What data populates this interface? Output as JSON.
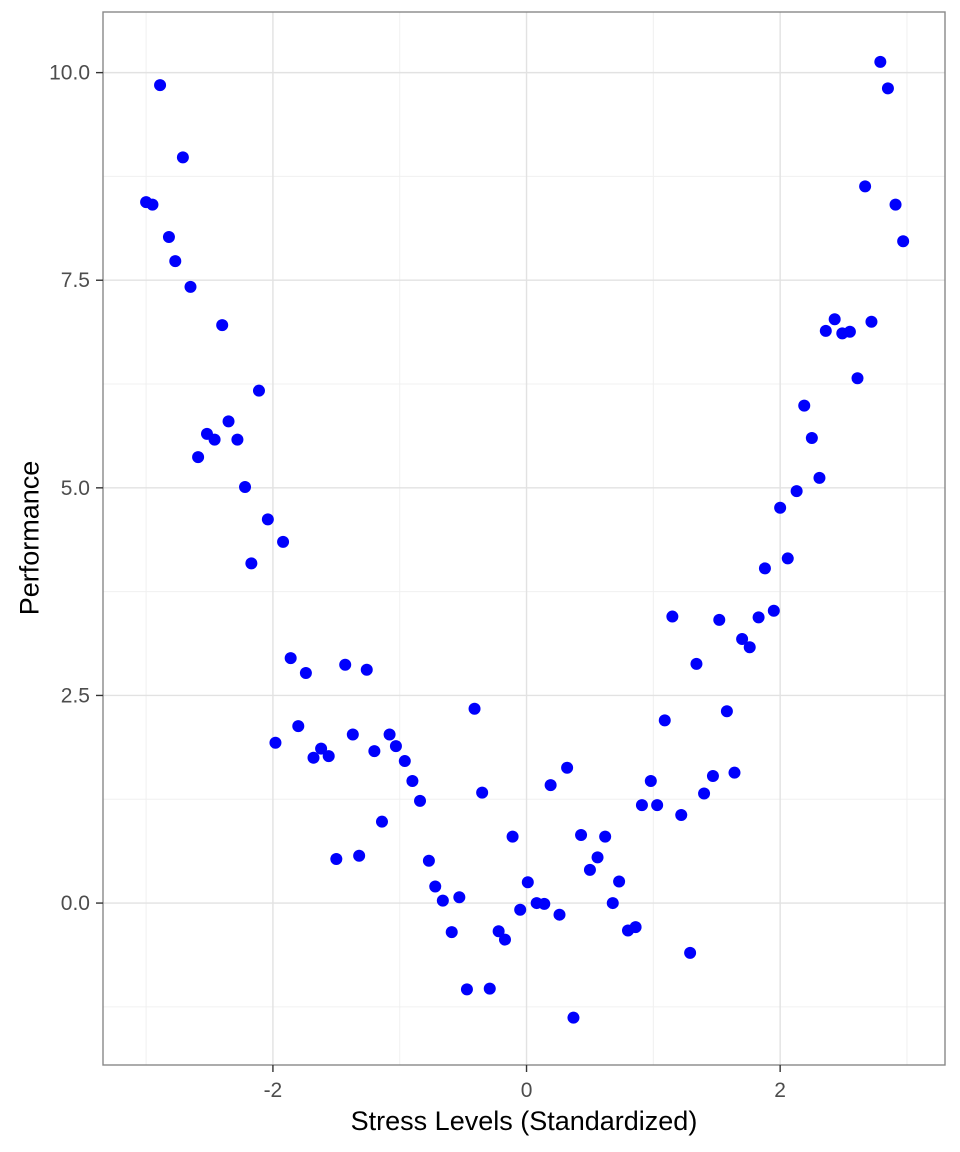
{
  "chart_data": {
    "type": "scatter",
    "title": "",
    "xlabel": "Stress Levels (Standardized)",
    "ylabel": "Performance",
    "x_tick_labels": [
      "-2",
      "0",
      "2"
    ],
    "x_tick_values": [
      -2,
      0,
      2
    ],
    "y_tick_labels": [
      "0.0",
      "2.5",
      "5.0",
      "7.5",
      "10.0"
    ],
    "y_tick_values": [
      0,
      2.5,
      5,
      7.5,
      10
    ],
    "x_minor_values": [
      -3,
      -1,
      1,
      3
    ],
    "y_minor_values": [
      -1.25,
      1.25,
      3.75,
      6.25,
      8.75
    ],
    "xlim": [
      -3.34,
      3.3
    ],
    "ylim": [
      -1.95,
      10.73
    ],
    "grid": true,
    "legend_position": "none",
    "colors": {
      "point": "#0000FC",
      "grid_major": "#E2E2E2",
      "grid_minor": "#F0F0F0",
      "panel_border": "#888888",
      "tick_mark": "#333333",
      "tick_label": "#4d4d4d",
      "axis_title": "#000000",
      "background": "#FFFFFF"
    },
    "points": [
      [
        -2.89,
        9.85
      ],
      [
        -2.71,
        8.98
      ],
      [
        -3.0,
        8.44
      ],
      [
        -2.95,
        8.41
      ],
      [
        -2.82,
        8.02
      ],
      [
        -2.77,
        7.73
      ],
      [
        -2.65,
        7.42
      ],
      [
        -2.4,
        6.96
      ],
      [
        2.79,
        10.13
      ],
      [
        2.85,
        9.81
      ],
      [
        2.67,
        8.63
      ],
      [
        2.91,
        8.41
      ],
      [
        2.97,
        7.97
      ],
      [
        2.43,
        7.03
      ],
      [
        2.36,
        6.89
      ],
      [
        2.49,
        6.86
      ],
      [
        2.55,
        6.88
      ],
      [
        2.72,
        7.0
      ],
      [
        -2.11,
        6.17
      ],
      [
        -2.35,
        5.8
      ],
      [
        -2.52,
        5.65
      ],
      [
        -2.46,
        5.58
      ],
      [
        -2.28,
        5.58
      ],
      [
        -2.59,
        5.37
      ],
      [
        -2.22,
        5.01
      ],
      [
        -2.04,
        4.62
      ],
      [
        -1.92,
        4.35
      ],
      [
        -2.17,
        4.09
      ],
      [
        -1.86,
        2.95
      ],
      [
        -1.74,
        2.77
      ],
      [
        -1.43,
        2.87
      ],
      [
        -1.26,
        2.81
      ],
      [
        -0.41,
        2.34
      ],
      [
        2.61,
        6.32
      ],
      [
        2.19,
        5.99
      ],
      [
        2.25,
        5.6
      ],
      [
        2.31,
        5.12
      ],
      [
        2.13,
        4.96
      ],
      [
        2.0,
        4.76
      ],
      [
        2.06,
        4.15
      ],
      [
        1.88,
        4.03
      ],
      [
        1.95,
        3.52
      ],
      [
        1.83,
        3.44
      ],
      [
        1.15,
        3.45
      ],
      [
        1.52,
        3.41
      ],
      [
        1.7,
        3.18
      ],
      [
        1.76,
        3.08
      ],
      [
        1.34,
        2.88
      ],
      [
        1.58,
        2.31
      ],
      [
        1.09,
        2.2
      ],
      [
        -1.8,
        2.13
      ],
      [
        -1.98,
        1.93
      ],
      [
        -1.37,
        2.03
      ],
      [
        -1.08,
        2.03
      ],
      [
        -1.68,
        1.75
      ],
      [
        -1.62,
        1.86
      ],
      [
        -1.56,
        1.77
      ],
      [
        -1.2,
        1.83
      ],
      [
        -1.03,
        1.89
      ],
      [
        -0.96,
        1.71
      ],
      [
        -0.9,
        1.47
      ],
      [
        -0.35,
        1.33
      ],
      [
        -0.84,
        1.23
      ],
      [
        -1.14,
        0.98
      ],
      [
        -0.11,
        0.8
      ],
      [
        -1.5,
        0.53
      ],
      [
        -1.32,
        0.57
      ],
      [
        -0.77,
        0.51
      ],
      [
        -0.72,
        0.2
      ],
      [
        -0.66,
        0.03
      ],
      [
        -0.53,
        0.07
      ],
      [
        0.01,
        0.25
      ],
      [
        -0.05,
        -0.08
      ],
      [
        -0.59,
        -0.35
      ],
      [
        -0.22,
        -0.34
      ],
      [
        -0.17,
        -0.44
      ],
      [
        -0.47,
        -1.04
      ],
      [
        -0.29,
        -1.03
      ],
      [
        0.32,
        1.63
      ],
      [
        0.19,
        1.42
      ],
      [
        0.98,
        1.47
      ],
      [
        1.47,
        1.53
      ],
      [
        1.64,
        1.57
      ],
      [
        1.4,
        1.32
      ],
      [
        0.91,
        1.18
      ],
      [
        1.03,
        1.18
      ],
      [
        1.22,
        1.06
      ],
      [
        0.43,
        0.82
      ],
      [
        0.62,
        0.8
      ],
      [
        0.56,
        0.55
      ],
      [
        0.5,
        0.4
      ],
      [
        0.73,
        0.26
      ],
      [
        0.08,
        0.0
      ],
      [
        0.14,
        -0.01
      ],
      [
        0.26,
        -0.14
      ],
      [
        0.68,
        0.0
      ],
      [
        0.8,
        -0.33
      ],
      [
        0.86,
        -0.29
      ],
      [
        1.29,
        -0.6
      ],
      [
        0.37,
        -1.38
      ]
    ]
  }
}
